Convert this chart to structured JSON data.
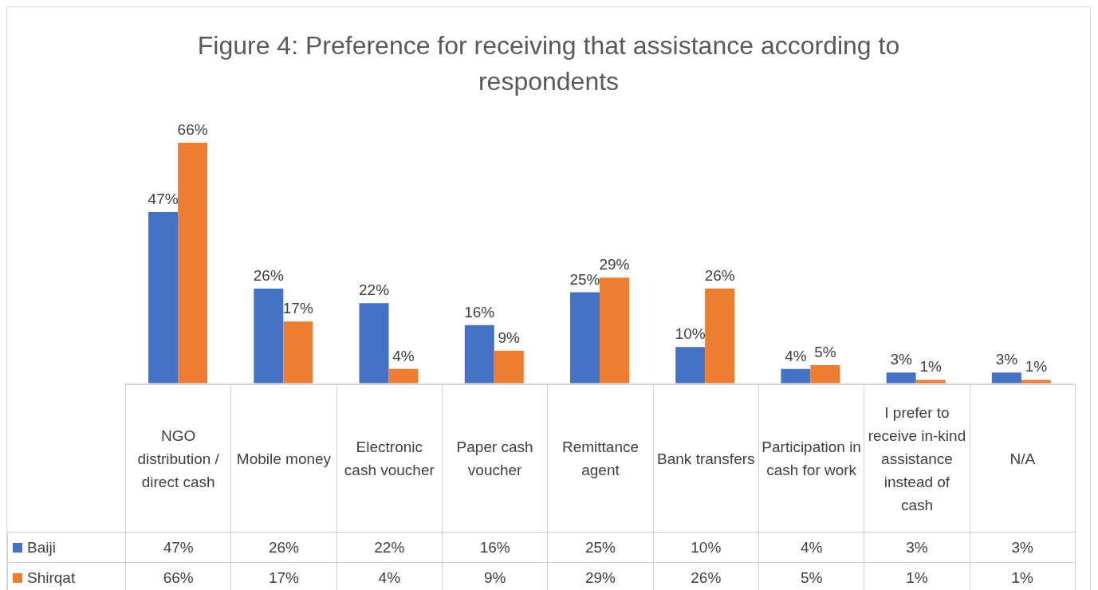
{
  "chart_data": {
    "type": "bar",
    "title": "Figure 4: Preference for receiving that assistance according to respondents",
    "categories": [
      "NGO distribution / direct cash",
      "Mobile money",
      "Electronic cash voucher",
      "Paper cash voucher",
      "Remittance agent",
      "Bank transfers",
      "Participation in cash for work",
      "I prefer to receive in-kind assistance instead of cash",
      "N/A"
    ],
    "series": [
      {
        "name": "Baiji",
        "color": "#4472c4",
        "values": [
          47,
          26,
          22,
          16,
          25,
          10,
          4,
          3,
          3
        ],
        "value_labels": [
          "47%",
          "26%",
          "22%",
          "16%",
          "25%",
          "10%",
          "4%",
          "3%",
          "3%"
        ]
      },
      {
        "name": "Shirqat",
        "color": "#ed7d31",
        "values": [
          66,
          17,
          4,
          9,
          29,
          26,
          5,
          1,
          1
        ],
        "value_labels": [
          "66%",
          "17%",
          "4%",
          "9%",
          "29%",
          "26%",
          "5%",
          "1%",
          "1%"
        ]
      }
    ],
    "legend": "bottom",
    "grid": false
  }
}
